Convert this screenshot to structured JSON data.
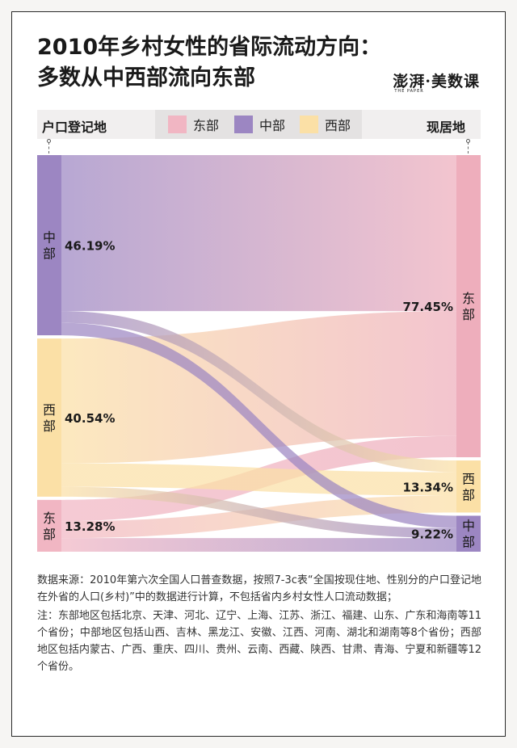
{
  "title": {
    "line1": "2010年乡村女性的省际流动方向：",
    "line2": "多数从中西部流向东部"
  },
  "brand": {
    "name": "澎湃·美数课",
    "sub": "THE PAPER"
  },
  "legend": {
    "left_label": "户口登记地",
    "right_label": "现居地",
    "items": [
      {
        "label": "东部",
        "color": "#f1b6c3"
      },
      {
        "label": "中部",
        "color": "#9c86c2"
      },
      {
        "label": "西部",
        "color": "#fbe0a6"
      }
    ]
  },
  "chart_data": {
    "type": "sankey",
    "source_nodes": [
      {
        "name": "中部",
        "pct": "46.19%",
        "value": 46.19,
        "color": "#9c86c2"
      },
      {
        "name": "西部",
        "pct": "40.54%",
        "value": 40.54,
        "color": "#fbe0a6"
      },
      {
        "name": "东部",
        "pct": "13.28%",
        "value": 13.28,
        "color": "#f1b6c3"
      }
    ],
    "target_nodes": [
      {
        "name": "东部",
        "pct": "77.45%",
        "value": 77.45,
        "color": "#eeaebc"
      },
      {
        "name": "西部",
        "pct": "13.34%",
        "value": 13.34,
        "color": "#fbe0a6"
      },
      {
        "name": "中部",
        "pct": "9.22%",
        "value": 9.22,
        "color": "#9c86c2"
      }
    ],
    "links": [
      {
        "source": "中部",
        "target": "东部",
        "value": 40.0
      },
      {
        "source": "中部",
        "target": "西部",
        "value": 3.0
      },
      {
        "source": "中部",
        "target": "中部",
        "value": 3.19
      },
      {
        "source": "西部",
        "target": "东部",
        "value": 32.0
      },
      {
        "source": "西部",
        "target": "西部",
        "value": 6.0
      },
      {
        "source": "西部",
        "target": "中部",
        "value": 2.54
      },
      {
        "source": "东部",
        "target": "东部",
        "value": 5.45
      },
      {
        "source": "东部",
        "target": "西部",
        "value": 4.34
      },
      {
        "source": "东部",
        "target": "中部",
        "value": 3.49
      }
    ]
  },
  "notes": {
    "source": "数据来源：2010年第六次全国人口普查数据，按照7-3c表“全国按现住地、性别分的户口登记地在外省的人口(乡村)”中的数据进行计算，不包括省内乡村女性人口流动数据；",
    "note": "注：东部地区包括北京、天津、河北、辽宁、上海、江苏、浙江、福建、山东、广东和海南等11个省份；中部地区包括山西、吉林、黑龙江、安徽、江西、河南、湖北和湖南等8个省份；西部地区包括内蒙古、广西、重庆、四川、贵州、云南、西藏、陕西、甘肃、青海、宁夏和新疆等12个省份。"
  }
}
